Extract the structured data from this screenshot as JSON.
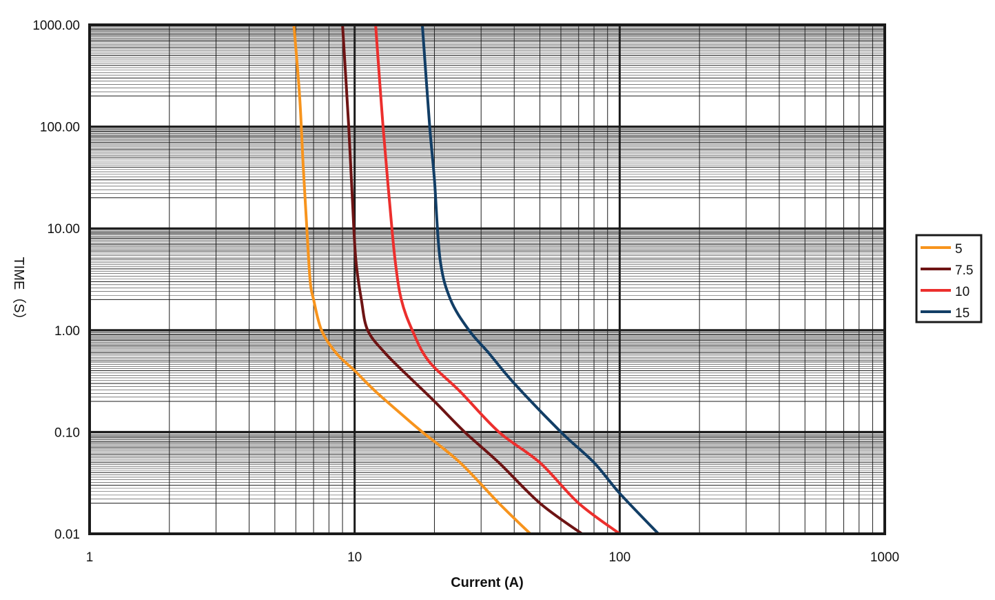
{
  "chart_data": {
    "type": "line",
    "title": "",
    "xlabel": "Current (A)",
    "ylabel": "TIME（S）",
    "x_scale": "log",
    "y_scale": "log",
    "xlim": [
      1,
      1000
    ],
    "ylim": [
      0.01,
      1000
    ],
    "x_tick_labels": [
      "1",
      "10",
      "100",
      "1000"
    ],
    "y_tick_labels": [
      "0.01",
      "0.10",
      "1.00",
      "10.00",
      "100.00",
      "1000.00"
    ],
    "grid": true,
    "legend_position": "right",
    "series": [
      {
        "name": "5",
        "color": "#f7941d",
        "points": [
          [
            5.9,
            1000
          ],
          [
            6.2,
            200
          ],
          [
            6.4,
            40
          ],
          [
            6.6,
            10
          ],
          [
            6.8,
            3
          ],
          [
            7.0,
            2
          ],
          [
            7.5,
            1
          ],
          [
            8.5,
            0.6
          ],
          [
            10,
            0.4
          ],
          [
            12,
            0.25
          ],
          [
            15,
            0.15
          ],
          [
            18,
            0.1
          ],
          [
            25,
            0.05
          ],
          [
            35,
            0.02
          ],
          [
            46,
            0.01
          ]
        ]
      },
      {
        "name": "7.5",
        "color": "#6e1414",
        "points": [
          [
            9.0,
            1000
          ],
          [
            9.5,
            100
          ],
          [
            9.8,
            20
          ],
          [
            10.1,
            5
          ],
          [
            10.6,
            2
          ],
          [
            11.2,
            1
          ],
          [
            13,
            0.6
          ],
          [
            16,
            0.35
          ],
          [
            20,
            0.2
          ],
          [
            26,
            0.1
          ],
          [
            35,
            0.05
          ],
          [
            50,
            0.02
          ],
          [
            72,
            0.01
          ]
        ]
      },
      {
        "name": "10",
        "color": "#ec2f2d",
        "points": [
          [
            12.0,
            1000
          ],
          [
            12.8,
            100
          ],
          [
            13.5,
            20
          ],
          [
            14.2,
            5
          ],
          [
            15,
            2
          ],
          [
            16.5,
            1
          ],
          [
            19,
            0.5
          ],
          [
            25,
            0.25
          ],
          [
            35,
            0.1
          ],
          [
            50,
            0.05
          ],
          [
            70,
            0.02
          ],
          [
            100,
            0.01
          ]
        ]
      },
      {
        "name": "15",
        "color": "#123e66",
        "points": [
          [
            18.0,
            1000
          ],
          [
            19.2,
            100
          ],
          [
            20,
            30
          ],
          [
            21,
            5
          ],
          [
            23,
            2
          ],
          [
            27,
            1
          ],
          [
            32,
            0.6
          ],
          [
            40,
            0.3
          ],
          [
            60,
            0.1
          ],
          [
            80,
            0.05
          ],
          [
            100,
            0.025
          ],
          [
            140,
            0.01
          ]
        ]
      }
    ]
  }
}
